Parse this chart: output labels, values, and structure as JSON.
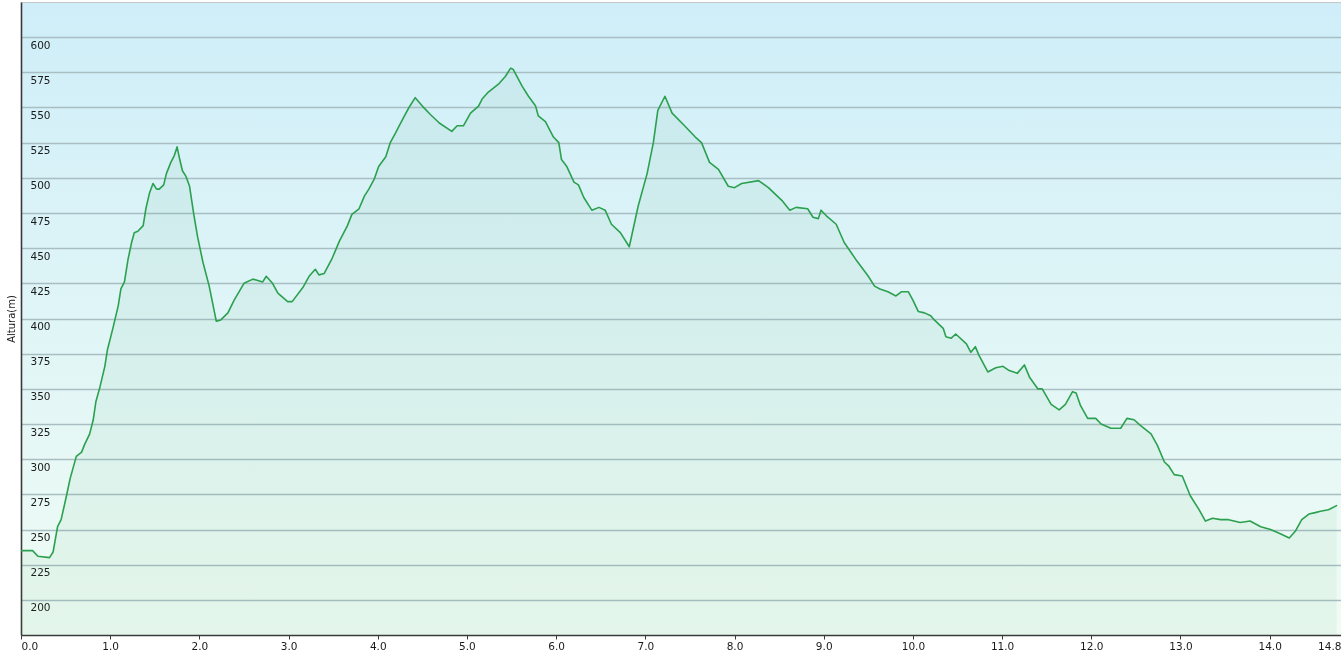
{
  "chart_data": {
    "type": "area",
    "ylabel": "Altura(m)",
    "x": [
      0,
      0.13,
      0.19,
      0.32,
      0.36,
      0.41,
      0.45,
      0.51,
      0.55,
      0.62,
      0.68,
      0.71,
      0.77,
      0.81,
      0.84,
      0.88,
      0.94,
      0.97,
      1.03,
      1.09,
      1.12,
      1.16,
      1.2,
      1.24,
      1.27,
      1.31,
      1.37,
      1.4,
      1.44,
      1.48,
      1.52,
      1.55,
      1.6,
      1.63,
      1.68,
      1.72,
      1.75,
      1.78,
      1.81,
      1.85,
      1.89,
      1.94,
      1.98,
      2.04,
      2.11,
      2.19,
      2.24,
      2.32,
      2.39,
      2.5,
      2.6,
      2.71,
      2.75,
      2.82,
      2.88,
      2.99,
      3.04,
      3.16,
      3.23,
      3.3,
      3.34,
      3.4,
      3.49,
      3.57,
      3.66,
      3.71,
      3.79,
      3.85,
      3.9,
      3.96,
      4.01,
      4.09,
      4.14,
      4.2,
      4.24,
      4.29,
      4.35,
      4.42,
      4.5,
      4.59,
      4.69,
      4.83,
      4.89,
      4.96,
      5.04,
      5.13,
      5.17,
      5.24,
      5.36,
      5.43,
      5.49,
      5.52,
      5.62,
      5.69,
      5.77,
      5.8,
      5.88,
      5.97,
      6.03,
      6.06,
      6.12,
      6.2,
      6.25,
      6.31,
      6.4,
      6.48,
      6.55,
      6.62,
      6.72,
      6.82,
      6.92,
      7.02,
      7.09,
      7.14,
      7.22,
      7.3,
      7.44,
      7.56,
      7.63,
      7.72,
      7.82,
      7.93,
      8.0,
      8.08,
      8.27,
      8.38,
      8.53,
      8.62,
      8.69,
      8.82,
      8.88,
      8.94,
      8.97,
      9.03,
      9.14,
      9.23,
      9.36,
      9.5,
      9.57,
      9.63,
      9.72,
      9.81,
      9.87,
      9.95,
      10.0,
      10.06,
      10.13,
      10.2,
      10.24,
      10.34,
      10.37,
      10.43,
      10.48,
      10.6,
      10.65,
      10.7,
      10.74,
      10.84,
      10.93,
      11.01,
      11.08,
      11.17,
      11.25,
      11.31,
      11.4,
      11.45,
      11.55,
      11.64,
      11.71,
      11.79,
      11.83,
      11.88,
      11.96,
      12.05,
      12.11,
      12.22,
      12.33,
      12.4,
      12.48,
      12.55,
      12.67,
      12.74,
      12.82,
      12.87,
      12.93,
      13.02,
      13.11,
      13.21,
      13.28,
      13.36,
      13.45,
      13.54,
      13.67,
      13.78,
      13.9,
      14.01,
      14.12,
      14.22,
      14.29,
      14.36,
      14.44,
      14.51,
      14.57,
      14.66,
      14.75
    ],
    "series": [
      {
        "color": "#2ba04f",
        "values": [
          235,
          235,
          231,
          230,
          234,
          252,
          257,
          274,
          286,
          302,
          305,
          310,
          318,
          328,
          341,
          350,
          366,
          378,
          393,
          409,
          421,
          426,
          442,
          454,
          461,
          462,
          466,
          478,
          489,
          496,
          492,
          492,
          495,
          503,
          511,
          516,
          522,
          513,
          505,
          501,
          494,
          473,
          458,
          440,
          423,
          398,
          399,
          404,
          413,
          425,
          428,
          426,
          430,
          425,
          418,
          412,
          412,
          422,
          430,
          435,
          431,
          432,
          443,
          455,
          466,
          474,
          478,
          487,
          492,
          499,
          508,
          515,
          525,
          532,
          537,
          543,
          550,
          557,
          551,
          545,
          539,
          533,
          537,
          537,
          546,
          551,
          556,
          561,
          567,
          572,
          578,
          577,
          565,
          558,
          551,
          544,
          540,
          529,
          525,
          513,
          508,
          497,
          495,
          486,
          477,
          479,
          477,
          467,
          461,
          451,
          480,
          503,
          525,
          548,
          558,
          546,
          537,
          529,
          525,
          511,
          506,
          494,
          493,
          496,
          498,
          493,
          484,
          477,
          479,
          478,
          472,
          471,
          477,
          473,
          467,
          454,
          442,
          430,
          423,
          421,
          419,
          416,
          419,
          419,
          413,
          405,
          404,
          402,
          399,
          393,
          387,
          386,
          389,
          382,
          376,
          380,
          374,
          362,
          365,
          366,
          363,
          361,
          367,
          358,
          350,
          350,
          339,
          335,
          339,
          348,
          347,
          338,
          329,
          329,
          325,
          322,
          322,
          329,
          328,
          324,
          318,
          310,
          298,
          295,
          289,
          288,
          274,
          264,
          256,
          258,
          257,
          257,
          255,
          256,
          252,
          250,
          247,
          244,
          249,
          257,
          261,
          262,
          263,
          264,
          267
        ]
      }
    ],
    "xlim": [
      0,
      14.8
    ],
    "xticks": [
      {
        "value": 0,
        "label": "0.0"
      },
      {
        "value": 1,
        "label": "1.0"
      },
      {
        "value": 2,
        "label": "2.0"
      },
      {
        "value": 3,
        "label": "3.0"
      },
      {
        "value": 4,
        "label": "4.0"
      },
      {
        "value": 5,
        "label": "5.0"
      },
      {
        "value": 6,
        "label": "6.0"
      },
      {
        "value": 7,
        "label": "7.0"
      },
      {
        "value": 8,
        "label": "8.0"
      },
      {
        "value": 9,
        "label": "9.0"
      },
      {
        "value": 10,
        "label": "10.0"
      },
      {
        "value": 11,
        "label": "11.0"
      },
      {
        "value": 12,
        "label": "12.0"
      },
      {
        "value": 13,
        "label": "13.0"
      },
      {
        "value": 14,
        "label": "14.0"
      },
      14.8
    ],
    "ylim": [
      175,
      625
    ],
    "yticks": [
      200,
      225,
      250,
      275,
      300,
      325,
      350,
      375,
      400,
      425,
      450,
      475,
      500,
      525,
      550,
      575,
      600
    ],
    "grid": "y",
    "line_style": "solid"
  }
}
